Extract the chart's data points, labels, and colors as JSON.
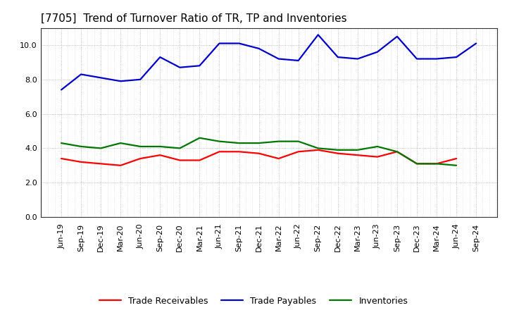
{
  "title": "[7705]  Trend of Turnover Ratio of TR, TP and Inventories",
  "labels": [
    "Jun-19",
    "Sep-19",
    "Dec-19",
    "Mar-20",
    "Jun-20",
    "Sep-20",
    "Dec-20",
    "Mar-21",
    "Jun-21",
    "Sep-21",
    "Dec-21",
    "Mar-22",
    "Jun-22",
    "Sep-22",
    "Dec-22",
    "Mar-23",
    "Jun-23",
    "Sep-23",
    "Dec-23",
    "Mar-24",
    "Jun-24",
    "Sep-24"
  ],
  "trade_receivables": [
    3.4,
    3.2,
    3.1,
    3.0,
    3.4,
    3.6,
    3.3,
    3.3,
    3.8,
    3.8,
    3.7,
    3.4,
    3.8,
    3.9,
    3.7,
    3.6,
    3.5,
    3.8,
    3.1,
    3.1,
    3.4,
    null
  ],
  "trade_payables": [
    7.4,
    8.3,
    8.1,
    7.9,
    8.0,
    9.3,
    8.7,
    8.8,
    10.1,
    10.1,
    9.8,
    9.2,
    9.1,
    10.6,
    9.3,
    9.2,
    9.6,
    10.5,
    9.2,
    9.2,
    9.3,
    10.1
  ],
  "inventories": [
    4.3,
    4.1,
    4.0,
    4.3,
    4.1,
    4.1,
    4.0,
    4.6,
    4.4,
    4.3,
    4.3,
    4.4,
    4.4,
    4.0,
    3.9,
    3.9,
    4.1,
    3.8,
    3.1,
    3.1,
    3.0,
    null
  ],
  "ylim": [
    0.0,
    11.0
  ],
  "yticks": [
    0.0,
    2.0,
    4.0,
    6.0,
    8.0,
    10.0
  ],
  "colors": {
    "trade_receivables": "#ff0000",
    "trade_payables": "#0000cc",
    "inventories": "#007700"
  },
  "legend": {
    "trade_receivables": "Trade Receivables",
    "trade_payables": "Trade Payables",
    "inventories": "Inventories"
  },
  "background_color": "#ffffff",
  "grid_color": "#999999",
  "title_fontsize": 11,
  "label_fontsize": 8,
  "legend_fontsize": 9,
  "linewidth": 1.6
}
